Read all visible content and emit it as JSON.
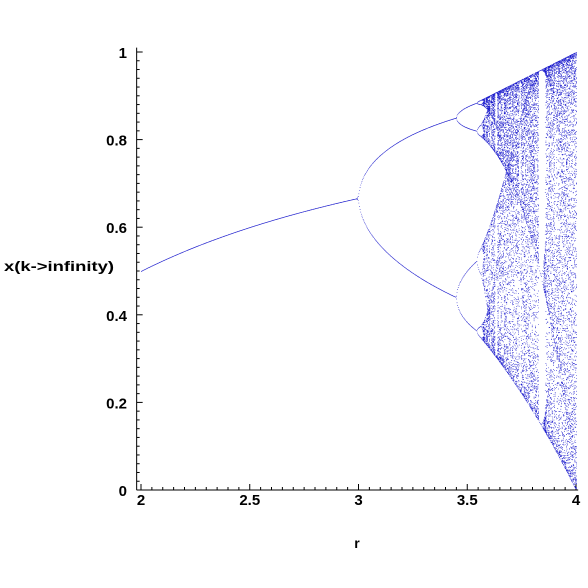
{
  "chart_data": {
    "type": "scatter",
    "title": "",
    "xlabel": "r",
    "ylabel": "x(k->infinity)",
    "xlim": [
      1.98,
      4.01
    ],
    "ylim": [
      0,
      1.01
    ],
    "x_ticks": [
      {
        "value": 2,
        "label": "2"
      },
      {
        "value": 2.5,
        "label": "2.5"
      },
      {
        "value": 3,
        "label": "3"
      },
      {
        "value": 3.5,
        "label": "3.5"
      },
      {
        "value": 4,
        "label": "4"
      }
    ],
    "y_ticks": [
      {
        "value": 0,
        "label": "0"
      },
      {
        "value": 0.2,
        "label": "0.2"
      },
      {
        "value": 0.4,
        "label": "0.4"
      },
      {
        "value": 0.6,
        "label": "0.6"
      },
      {
        "value": 0.8,
        "label": "0.8"
      },
      {
        "value": 1,
        "label": "1"
      }
    ],
    "grid": false,
    "legend": "none",
    "series": [
      {
        "color": "#1a1acc",
        "description_of_values": "long-run values of x for the logistic map x(k+1) = r*x(k)*(1-x(k)) over r from 2 to 4",
        "r_range": [
          2,
          4
        ],
        "map": "logistic",
        "key_points": [
          {
            "r": 2,
            "x": [
              0.5
            ]
          },
          {
            "r": 2.5,
            "x": [
              0.6
            ]
          },
          {
            "r": 3,
            "x": [
              0.667
            ]
          },
          {
            "r": 3.2,
            "x": [
              0.513,
              0.799
            ]
          },
          {
            "r": 3.45,
            "x": [
              0.44,
              0.852
            ]
          },
          {
            "r": 3.5,
            "x": [
              0.383,
              0.501,
              0.827,
              0.875
            ]
          },
          {
            "r": 4,
            "x": [
              0,
              1
            ]
          }
        ]
      }
    ]
  }
}
